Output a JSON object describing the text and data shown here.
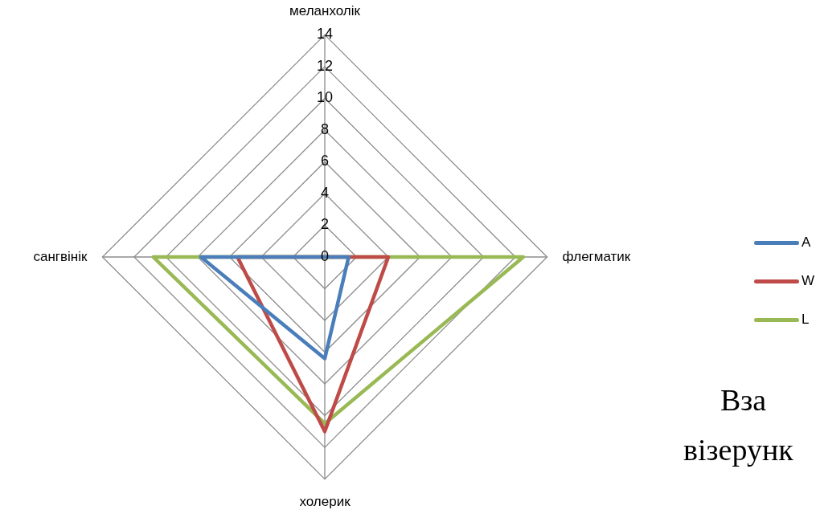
{
  "chart_data": {
    "type": "radar",
    "categories": [
      "меланхолік",
      "флегматик",
      "холерик",
      "сангвінік"
    ],
    "series": [
      {
        "name": "A",
        "color": "#4a7ebb",
        "values": [
          0,
          1.5,
          6.4,
          7.8
        ]
      },
      {
        "name": "W",
        "color": "#be4b48",
        "values": [
          0,
          4,
          11,
          5.5
        ]
      },
      {
        "name": "L",
        "color": "#98b954",
        "values": [
          0,
          12.5,
          10.5,
          10.8
        ]
      }
    ],
    "ylim": [
      0,
      14
    ],
    "yticks": [
      0,
      2,
      4,
      6,
      8,
      10,
      12,
      14
    ],
    "grid": true,
    "legend": "right",
    "marker": "none",
    "annotations": [
      "Вза",
      "візерунк"
    ]
  }
}
